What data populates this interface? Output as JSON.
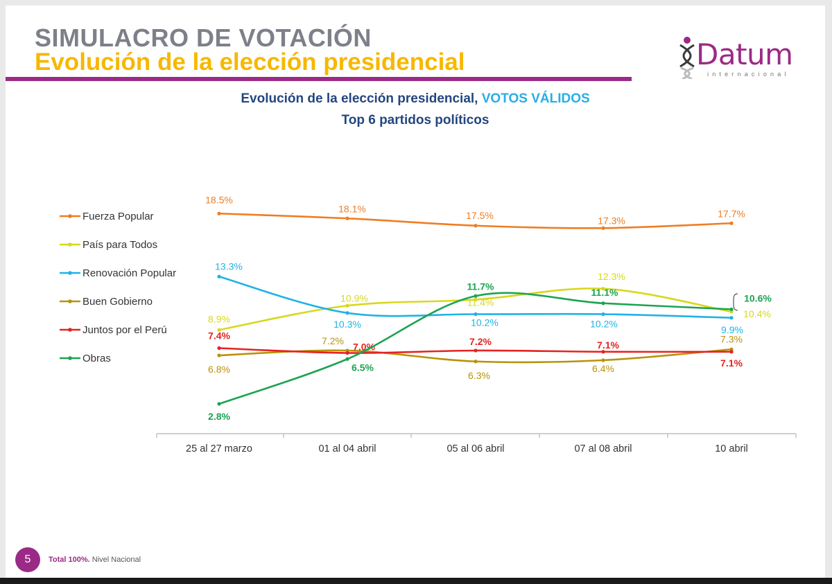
{
  "header": {
    "title_line1": "SIMULACRO DE VOTACIÓN",
    "title_line2": "Evolución de la elección presidencial"
  },
  "logo": {
    "name": "Datum",
    "sub": "internacional"
  },
  "chart_title": {
    "line1_main": "Evolución de la elección presidencial,",
    "line1_highlight": "VOTOS VÁLIDOS",
    "line2": "Top 6 partidos políticos"
  },
  "footer": {
    "page": "5",
    "total": "Total 100%.",
    "scope": "Nivel Nacional"
  },
  "colors": {
    "brand_purple": "#9b2a86",
    "title_gray": "#7d8089",
    "title_yellow": "#f6b800",
    "chart_title_blue": "#24467f",
    "highlight_blue": "#27aee7"
  },
  "chart_data": {
    "type": "line",
    "categories": [
      "25 al 27 marzo",
      "01 al 04 abril",
      "05 al 06 abril",
      "07 al 08 abril",
      "10 abril"
    ],
    "legend_position": "left",
    "series": [
      {
        "name": "Fuerza Popular",
        "color": "#ef7d22",
        "values": [
          18.5,
          18.1,
          17.5,
          17.3,
          17.7
        ],
        "labels": [
          "18.5%",
          "18.1%",
          "17.5%",
          "17.3%",
          "17.7%"
        ]
      },
      {
        "name": "País para Todos",
        "color": "#d7d81c",
        "values": [
          8.9,
          10.9,
          11.4,
          12.3,
          10.4
        ],
        "labels": [
          "8.9%",
          "10.9%",
          "11.4%",
          "12.3%",
          "10.4%"
        ]
      },
      {
        "name": "Renovación Popular",
        "color": "#1fb2e6",
        "values": [
          13.3,
          10.3,
          10.2,
          10.2,
          9.9
        ],
        "labels": [
          "13.3%",
          "10.3%",
          "10.2%",
          "10.2%",
          "9.9%"
        ]
      },
      {
        "name": "Buen Gobierno",
        "color": "#b8920a",
        "values": [
          6.8,
          7.2,
          6.3,
          6.4,
          7.3
        ],
        "labels": [
          "6.8%",
          "7.2%",
          "6.3%",
          "6.4%",
          "7.3%"
        ]
      },
      {
        "name": "Juntos por el Perú",
        "color": "#e42320",
        "values": [
          7.4,
          7.0,
          7.2,
          7.1,
          7.1
        ],
        "labels": [
          "7.4%",
          "7.0%",
          "7.2%",
          "7.1%",
          "7.1%"
        ]
      },
      {
        "name": "Obras",
        "color": "#1ca351",
        "values": [
          2.8,
          6.5,
          11.7,
          11.1,
          10.6
        ],
        "labels": [
          "2.8%",
          "6.5%",
          "11.7%",
          "11.1%",
          "10.6%"
        ]
      }
    ]
  }
}
